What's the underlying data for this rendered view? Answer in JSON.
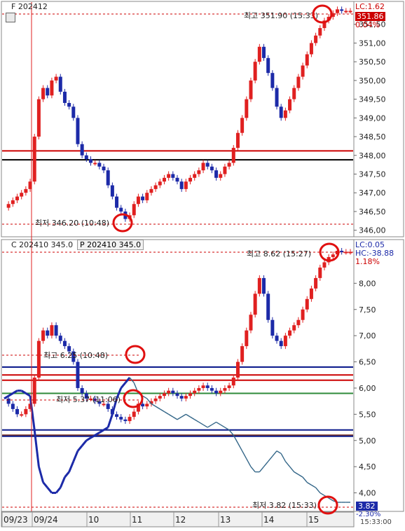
{
  "top_panel": {
    "symbol_label": "F 202412",
    "lc_label": "LC:1.62",
    "current_price": "351.86",
    "change_pct": "0.04%",
    "high_note": "최고 351.90 (15:33)",
    "low_note": "최저 346.20 (10:48)"
  },
  "bottom_panel": {
    "call_label": "C 202410 345.0",
    "put_label": "P 202410 345.0",
    "lc_label": "LC:0.05",
    "hc_label": "HC:-38.88",
    "change_pct": "1.18%",
    "down_pct": "-2.30%",
    "current_low": "3.82",
    "high_note": "최고 8.62 (15:27)",
    "high2_note": "최고 6.25 (10:48)",
    "low_note": "최저 5.37 (11:06)",
    "low2_note": "최저 3.82 (15:33)"
  },
  "x_axis": {
    "labels": [
      "09/23",
      "09/24",
      "10",
      "11",
      "12",
      "13",
      "14",
      "15"
    ],
    "last_time": "15:33:00"
  },
  "colors": {
    "up": "#e02020",
    "down": "#1c2aa8",
    "put_line": "#336688",
    "ref_red": "#cc0000",
    "ref_blue": "#0a1a8c",
    "ref_green": "#2e8b3a",
    "ref_brown": "#7a3020",
    "circle": "#e01010"
  },
  "chart_data": [
    {
      "type": "line",
      "title": "F 202412",
      "ylim": [
        345.9,
        352.0
      ],
      "yticks": [
        346.0,
        346.5,
        347.0,
        347.5,
        348.0,
        348.5,
        349.0,
        349.5,
        350.0,
        350.5,
        351.0,
        351.5
      ],
      "ytick_labels": [
        "346,00",
        "346,50",
        "347,00",
        "347,50",
        "348,00",
        "348,50",
        "349,00",
        "349,50",
        "350,00",
        "350,50",
        "351,00",
        "351,50"
      ],
      "x": [
        0,
        1,
        2,
        3,
        4,
        5,
        6,
        7,
        8,
        9,
        10,
        11,
        12,
        13,
        14,
        15,
        16,
        17,
        18,
        19,
        20,
        21,
        22,
        23,
        24,
        25,
        26,
        27,
        28,
        29,
        30,
        31,
        32,
        33,
        34,
        35,
        36,
        37,
        38,
        39,
        40,
        41,
        42,
        43,
        44,
        45,
        46,
        47,
        48,
        49,
        50,
        51,
        52,
        53,
        54,
        55,
        56,
        57,
        58,
        59,
        60,
        61,
        62,
        63,
        64,
        65,
        66,
        67,
        68,
        69,
        70,
        71,
        72,
        73,
        74,
        75,
        76,
        77,
        78,
        79,
        80
      ],
      "values": [
        346.6,
        346.7,
        346.8,
        346.9,
        347.0,
        347.1,
        347.3,
        348.5,
        349.5,
        349.8,
        349.6,
        350.0,
        350.1,
        349.7,
        349.4,
        349.3,
        349.0,
        348.3,
        348.0,
        347.9,
        347.8,
        347.8,
        347.7,
        347.6,
        347.2,
        346.9,
        346.6,
        346.5,
        346.3,
        346.4,
        346.7,
        346.9,
        346.8,
        347.0,
        347.1,
        347.2,
        347.3,
        347.4,
        347.5,
        347.4,
        347.3,
        347.1,
        347.3,
        347.4,
        347.5,
        347.6,
        347.8,
        347.7,
        347.6,
        347.4,
        347.5,
        347.7,
        347.8,
        348.2,
        348.6,
        349.0,
        349.5,
        350.0,
        350.5,
        350.9,
        350.6,
        350.2,
        349.8,
        349.3,
        349.0,
        349.2,
        349.5,
        349.8,
        350.1,
        350.4,
        350.7,
        351.0,
        351.2,
        351.4,
        351.6,
        351.7,
        351.8,
        351.9,
        351.86,
        351.86,
        351.86
      ],
      "series": [
        {
          "kind": "hline",
          "value": 348.12,
          "color": "#cc0000"
        },
        {
          "kind": "hline",
          "value": 347.88,
          "color": "#000000"
        }
      ]
    },
    {
      "type": "line",
      "title": "C 202410 345.0 / P 202410 345.0",
      "ylim": [
        3.7,
        8.7
      ],
      "yticks": [
        4.0,
        4.5,
        5.0,
        5.5,
        6.0,
        6.5,
        7.0,
        7.5,
        8.0
      ],
      "ytick_labels": [
        "4,00",
        "4,50",
        "5,00",
        "5,50",
        "6,00",
        "6,50",
        "7,00",
        "7,50",
        "8,00"
      ],
      "x": [
        0,
        1,
        2,
        3,
        4,
        5,
        6,
        7,
        8,
        9,
        10,
        11,
        12,
        13,
        14,
        15,
        16,
        17,
        18,
        19,
        20,
        21,
        22,
        23,
        24,
        25,
        26,
        27,
        28,
        29,
        30,
        31,
        32,
        33,
        34,
        35,
        36,
        37,
        38,
        39,
        40,
        41,
        42,
        43,
        44,
        45,
        46,
        47,
        48,
        49,
        50,
        51,
        52,
        53,
        54,
        55,
        56,
        57,
        58,
        59,
        60,
        61,
        62,
        63,
        64,
        65,
        66,
        67,
        68,
        69,
        70,
        71,
        72,
        73,
        74,
        75,
        76,
        77,
        78,
        79,
        80
      ],
      "series": [
        {
          "name": "C 202410 345.0",
          "values": [
            5.8,
            5.7,
            5.6,
            5.5,
            5.5,
            5.6,
            5.7,
            6.2,
            6.9,
            7.1,
            7.0,
            7.2,
            7.0,
            6.9,
            6.8,
            6.7,
            6.5,
            6.0,
            5.9,
            5.8,
            5.8,
            5.75,
            5.7,
            5.7,
            5.6,
            5.5,
            5.45,
            5.4,
            5.37,
            5.45,
            5.55,
            5.7,
            5.65,
            5.7,
            5.75,
            5.8,
            5.85,
            5.9,
            5.95,
            5.9,
            5.85,
            5.8,
            5.85,
            5.9,
            5.95,
            6.0,
            6.05,
            6.0,
            5.95,
            5.9,
            5.95,
            6.0,
            6.05,
            6.2,
            6.5,
            6.8,
            7.1,
            7.4,
            7.8,
            8.1,
            7.8,
            7.3,
            7.0,
            6.9,
            6.8,
            7.0,
            7.1,
            7.2,
            7.3,
            7.5,
            7.7,
            7.9,
            8.1,
            8.3,
            8.4,
            8.5,
            8.55,
            8.62,
            8.6,
            8.6,
            8.6
          ]
        },
        {
          "name": "P 202410 345.0",
          "values": [
            5.8,
            5.85,
            5.9,
            5.95,
            5.95,
            5.9,
            5.85,
            5.2,
            4.5,
            4.2,
            4.1,
            4.0,
            4.0,
            4.1,
            4.3,
            4.4,
            4.6,
            4.8,
            4.9,
            5.0,
            5.05,
            5.1,
            5.15,
            5.2,
            5.25,
            5.5,
            5.8,
            6.0,
            6.1,
            6.2,
            6.1,
            5.9,
            5.85,
            5.8,
            5.7,
            5.65,
            5.6,
            5.55,
            5.5,
            5.45,
            5.4,
            5.45,
            5.5,
            5.45,
            5.4,
            5.35,
            5.3,
            5.25,
            5.3,
            5.35,
            5.3,
            5.25,
            5.2,
            5.1,
            4.95,
            4.8,
            4.65,
            4.5,
            4.4,
            4.4,
            4.5,
            4.6,
            4.7,
            4.8,
            4.75,
            4.6,
            4.5,
            4.4,
            4.35,
            4.3,
            4.2,
            4.15,
            4.1,
            4.0,
            3.95,
            3.9,
            3.85,
            3.82,
            3.82,
            3.82,
            3.82
          ]
        },
        {
          "kind": "hline",
          "value": 6.4,
          "color": "#0a1a8c"
        },
        {
          "kind": "hline",
          "value": 6.25,
          "color": "#cc0000"
        },
        {
          "kind": "hline",
          "value": 6.15,
          "color": "#cc0000"
        },
        {
          "kind": "hline",
          "value": 5.9,
          "color": "#2e8b3a"
        },
        {
          "kind": "hline",
          "value": 5.2,
          "color": "#0a1a8c"
        },
        {
          "kind": "hline",
          "value": 5.1,
          "color": "#7a3020"
        },
        {
          "kind": "hline",
          "value": 5.08,
          "color": "#0a1a8c"
        }
      ]
    }
  ]
}
